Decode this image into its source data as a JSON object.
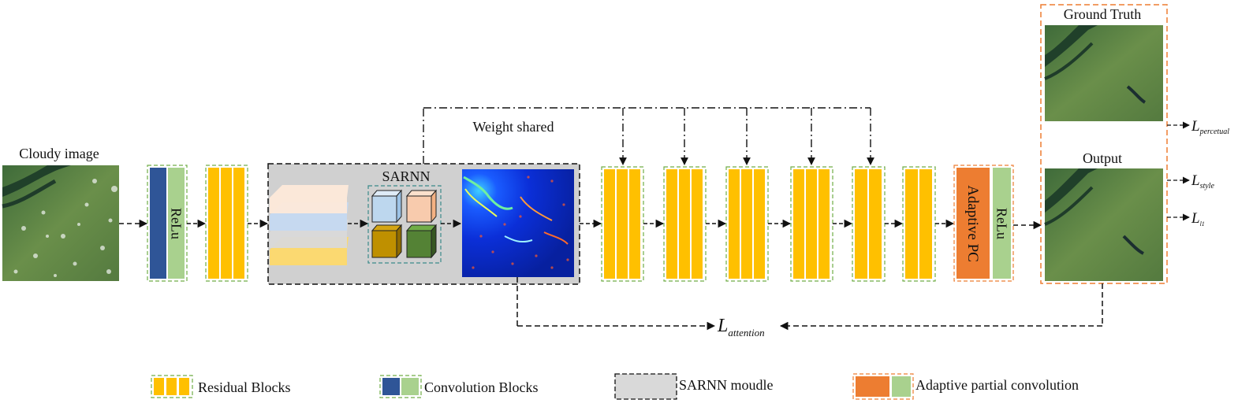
{
  "input": {
    "label": "Cloudy image"
  },
  "conv_block": {
    "relu_label": "ReLu"
  },
  "sarnn": {
    "title": "SARNN"
  },
  "weight_shared_label": "Weight shared",
  "adaptive_block": {
    "pc_label": "Adaptive PC",
    "relu_label": "ReLu"
  },
  "outputs": {
    "ground_truth_label": "Ground Truth",
    "output_label": "Output"
  },
  "losses": {
    "perceptual": {
      "main": "L",
      "sub": "percetual"
    },
    "style": {
      "main": "L",
      "sub": "style"
    },
    "l1": {
      "main": "L",
      "sub": "l1"
    },
    "attention": {
      "main": "L",
      "sub": "attention"
    }
  },
  "legend": {
    "residual": "Residual Blocks",
    "convolution": "Convolution Blocks",
    "sarnn": "SARNN moudle",
    "adaptive": "Adaptive partial convolution"
  },
  "colors": {
    "residual_yellow": "#ffc000",
    "conv_blue": "#2f5597",
    "relu_green": "#a9d18e",
    "adaptive_orange": "#ed7d31",
    "sarnn_gray": "#d0d0d0",
    "green_dash": "#70ad47",
    "orange_dash": "#ed7d31"
  }
}
